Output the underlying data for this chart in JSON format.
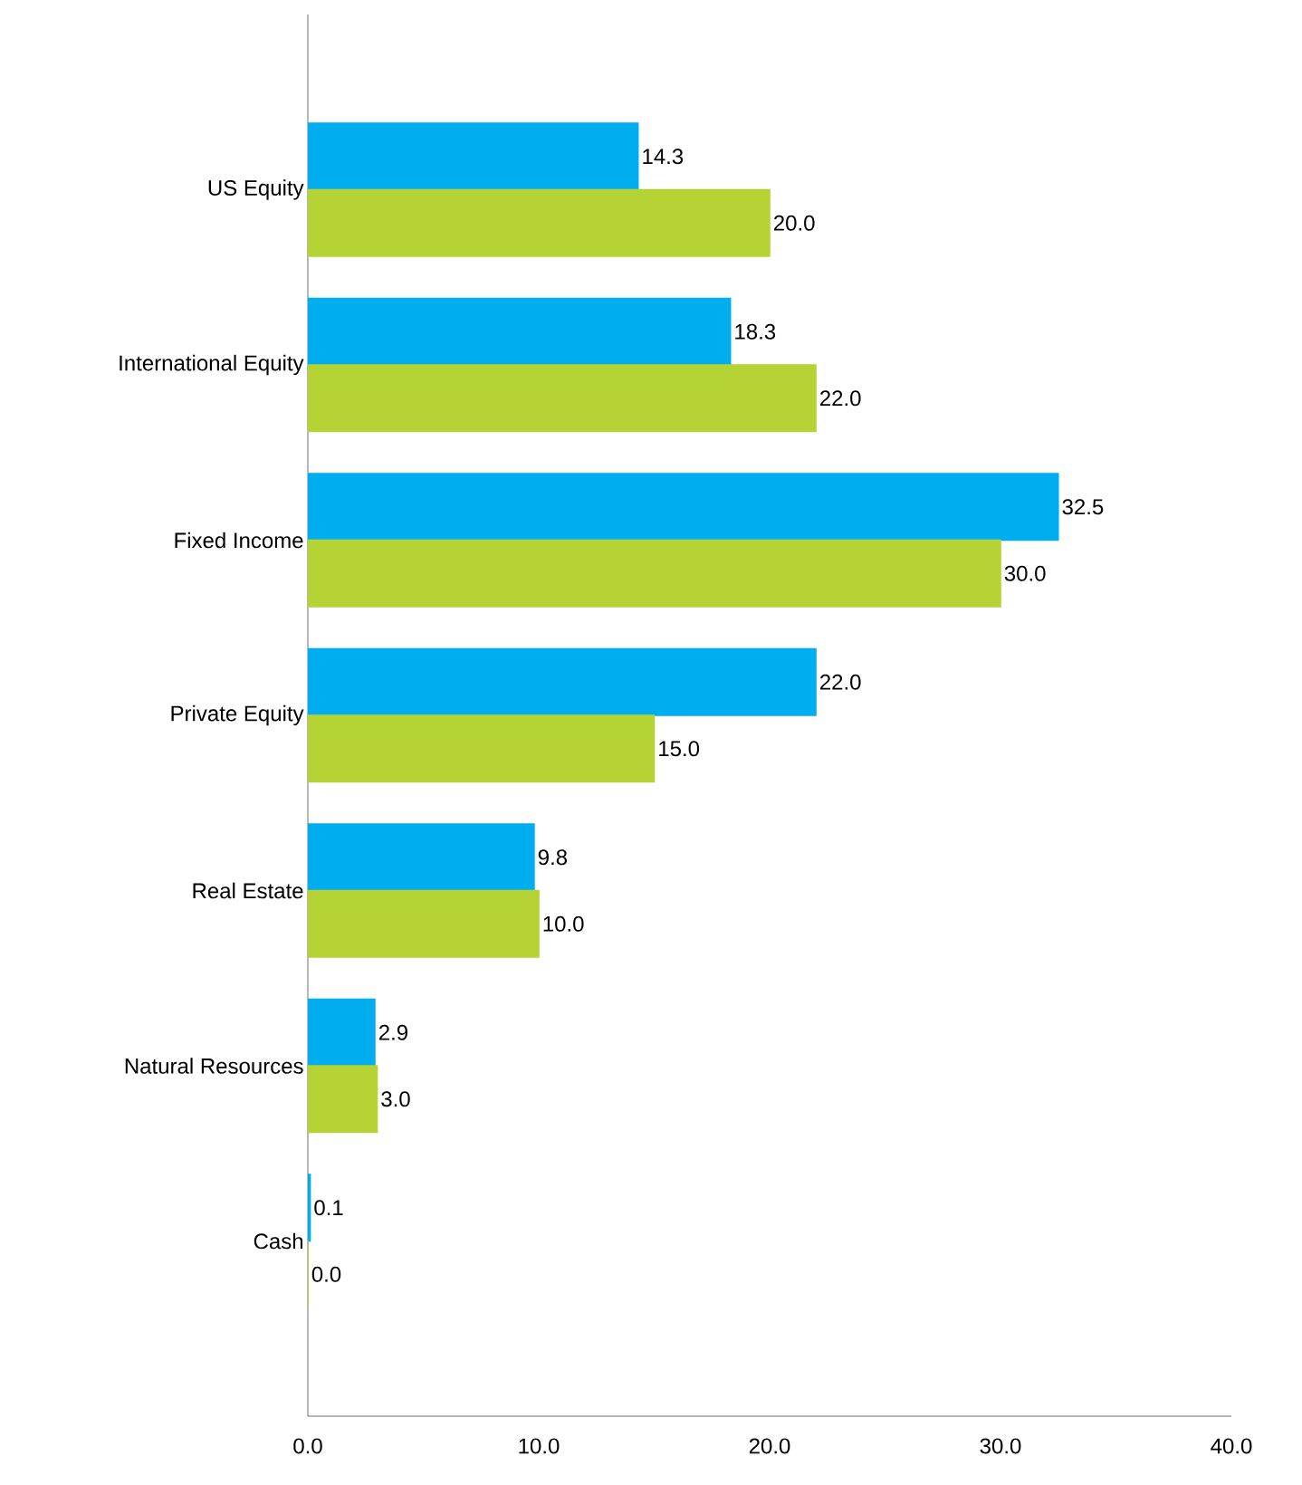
{
  "chart_data": {
    "type": "bar",
    "orientation": "horizontal",
    "categories": [
      "US Equity",
      "International Equity",
      "Fixed Income",
      "Private Equity",
      "Real Estate",
      "Natural Resources",
      "Cash"
    ],
    "series": [
      {
        "color": "#00aeef",
        "values": [
          14.3,
          18.3,
          32.5,
          22.0,
          9.8,
          2.9,
          0.1
        ],
        "value_labels": [
          "14.3",
          "18.3",
          "32.5",
          "22.0",
          "9.8",
          "2.9",
          "0.1"
        ]
      },
      {
        "color": "#b5d334",
        "values": [
          20.0,
          22.0,
          30.0,
          15.0,
          10.0,
          3.0,
          0.0
        ],
        "value_labels": [
          "20.0",
          "22.0",
          "30.0",
          "15.0",
          "10.0",
          "3.0",
          "0.0"
        ]
      }
    ],
    "xlim": [
      0,
      40
    ],
    "xticks": [
      {
        "value": 0,
        "label": "0.0"
      },
      {
        "value": 10,
        "label": "10.0"
      },
      {
        "value": 20,
        "label": "20.0"
      },
      {
        "value": 30,
        "label": "30.0"
      },
      {
        "value": 40,
        "label": "40.0"
      }
    ]
  }
}
